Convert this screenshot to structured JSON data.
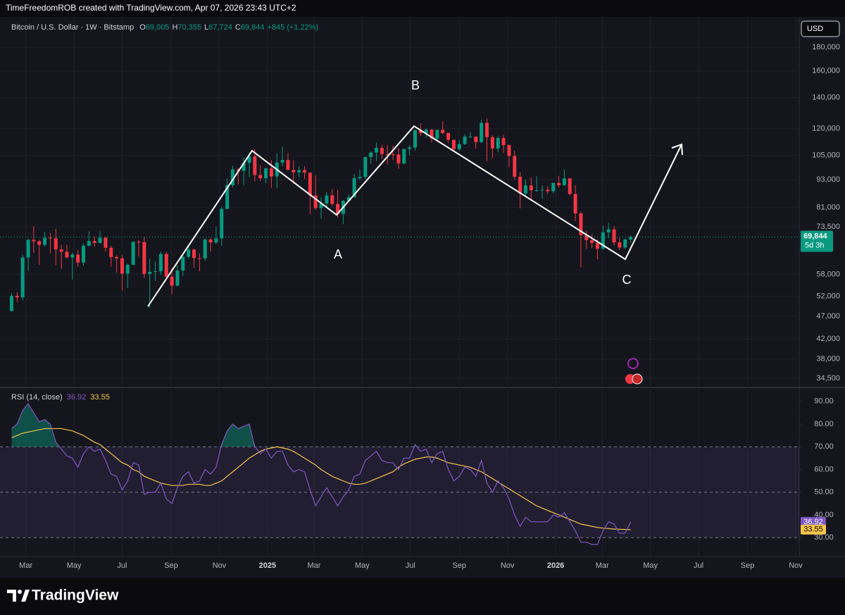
{
  "header": "TimeFreedomROB created with TradingView.com, Apr 07, 2026 23:43 UTC+2",
  "footer_logo": "TradingView",
  "currency_button": "USD",
  "chart_data": [
    {
      "type": "candlestick",
      "symbol": "Bitcoin / U.S. Dollar · 1W · Bitstamp",
      "legend": [
        [
          "O",
          "69,005"
        ],
        [
          "H",
          "70,355"
        ],
        [
          "L",
          "67,724"
        ],
        [
          "C",
          "69,844"
        ]
      ],
      "change": "+845 (+1.22%)",
      "countdown": "5d 3h",
      "annotations": [
        "A",
        "B",
        "C"
      ],
      "up_color": "#089981",
      "down_color": "#f23645",
      "log_scale": true,
      "grid": true,
      "xlim": [
        -2.1,
        142.5
      ],
      "xticks": [
        {
          "value": 2.57,
          "label": "Mar"
        },
        {
          "value": 11.29,
          "label": "May"
        },
        {
          "value": 20,
          "label": "Jul"
        },
        {
          "value": 28.86,
          "label": "Sep"
        },
        {
          "value": 37.57,
          "label": "Nov"
        },
        {
          "value": 46.29,
          "label": "2025"
        },
        {
          "value": 54.71,
          "label": "Mar"
        },
        {
          "value": 63.43,
          "label": "May"
        },
        {
          "value": 72.14,
          "label": "Jul"
        },
        {
          "value": 81,
          "label": "Sep"
        },
        {
          "value": 89.71,
          "label": "Nov"
        },
        {
          "value": 98.43,
          "label": "2026"
        },
        {
          "value": 106.86,
          "label": "Mar"
        },
        {
          "value": 115.57,
          "label": "May"
        },
        {
          "value": 124.29,
          "label": "Jul"
        },
        {
          "value": 133.14,
          "label": "Sep"
        },
        {
          "value": 141.86,
          "label": "Nov"
        }
      ],
      "ylim": [
        33200,
        206700
      ],
      "yticks": [
        {
          "value": 180000,
          "label": "180,000"
        },
        {
          "value": 160000,
          "label": "160,000"
        },
        {
          "value": 140000,
          "label": "140,000"
        },
        {
          "value": 120000,
          "label": "120,000"
        },
        {
          "value": 105000,
          "label": "105,000"
        },
        {
          "value": 93000,
          "label": "93,000"
        },
        {
          "value": 81000,
          "label": "81,000"
        },
        {
          "value": 73500,
          "label": "73,500"
        },
        {
          "value": 58000,
          "label": "58,000"
        },
        {
          "value": 52000,
          "label": "52,000"
        },
        {
          "value": 47000,
          "label": "47,000"
        },
        {
          "value": 42000,
          "label": "42,000"
        },
        {
          "value": 38000,
          "label": "38,000"
        },
        {
          "value": 34500,
          "label": "34,500"
        }
      ],
      "open": [
        48300,
        52100,
        51700,
        63100,
        68900,
        68400,
        67200,
        69600,
        69400,
        65700,
        64900,
        63100,
        64000,
        61500,
        66900,
        68500,
        67800,
        69600,
        66200,
        63200,
        62800,
        58200,
        60800,
        68200,
        68100,
        58100,
        58700,
        58900,
        64200,
        57300,
        54800,
        59100,
        63300,
        65600,
        62900,
        62800,
        69000,
        68000,
        69400,
        80400,
        90500,
        97900,
        97200,
        101200,
        104500,
        95200,
        93700,
        98400,
        94500,
        101300,
        102600,
        97700,
        96500,
        97600,
        96300,
        86000,
        80700,
        82600,
        86000,
        82400,
        78400,
        83700,
        85200,
        93700,
        94300,
        104100,
        106500,
        109000,
        105700,
        105600,
        105500,
        100900,
        108400,
        109200,
        119100,
        117300,
        119400,
        114200,
        119300,
        117400,
        113500,
        108300,
        111100,
        115300,
        115300,
        112200,
        123500,
        115000,
        108700,
        114500,
        110500,
        104700,
        94400,
        86800,
        90400,
        88200,
        88200,
        88500,
        87800,
        91500,
        90500,
        93600,
        86600,
        78600,
        70500,
        68800,
        67800,
        65900,
        71500,
        72600,
        68000,
        66300,
        69005
      ],
      "high": [
        52800,
        53000,
        64000,
        69200,
        73800,
        68900,
        71700,
        71300,
        72800,
        67200,
        67200,
        64700,
        65500,
        67700,
        71900,
        70000,
        71900,
        70000,
        66900,
        63800,
        63900,
        61300,
        68400,
        68800,
        70000,
        62700,
        61800,
        65000,
        64900,
        59800,
        60700,
        64100,
        66500,
        66000,
        64400,
        69400,
        69500,
        73600,
        81500,
        93500,
        99600,
        98600,
        104000,
        106500,
        108300,
        99900,
        98900,
        102700,
        106300,
        109600,
        106400,
        102500,
        99400,
        99500,
        96500,
        95000,
        85300,
        87400,
        88700,
        88500,
        84000,
        86400,
        95700,
        97900,
        104300,
        107100,
        111900,
        110700,
        110500,
        110400,
        108900,
        108500,
        110500,
        119400,
        123200,
        120200,
        119800,
        119300,
        124500,
        117600,
        113500,
        113400,
        116800,
        117900,
        115400,
        125600,
        126200,
        116100,
        116000,
        116400,
        110900,
        107500,
        96600,
        93100,
        94100,
        94600,
        90400,
        90000,
        91700,
        94800,
        97900,
        93800,
        90500,
        79300,
        72000,
        70800,
        69000,
        74000,
        75000,
        73800,
        69500,
        69300,
        70355
      ],
      "low": [
        48200,
        50500,
        50900,
        59000,
        64500,
        60800,
        66500,
        64500,
        60700,
        59600,
        62800,
        56500,
        60200,
        60700,
        66700,
        66600,
        67600,
        65000,
        60300,
        58400,
        53500,
        54200,
        60700,
        63400,
        57000,
        49000,
        56100,
        57800,
        57200,
        52500,
        54600,
        57500,
        62700,
        59900,
        58900,
        62000,
        65000,
        67500,
        66800,
        80200,
        89400,
        90800,
        90500,
        94200,
        92200,
        92500,
        91300,
        89300,
        89300,
        99500,
        97700,
        91200,
        94100,
        93400,
        78200,
        80000,
        76600,
        81100,
        81600,
        77100,
        74500,
        83100,
        85100,
        92800,
        93400,
        100700,
        102000,
        103100,
        100400,
        102700,
        98200,
        100400,
        105100,
        107500,
        115700,
        114700,
        112000,
        112600,
        116800,
        111700,
        107300,
        107300,
        110600,
        114700,
        108600,
        111600,
        102000,
        103600,
        106700,
        106300,
        98900,
        93000,
        80600,
        85300,
        83800,
        87600,
        84500,
        86600,
        86900,
        89300,
        90100,
        86100,
        75700,
        60000,
        65800,
        66000,
        62500,
        65500,
        69500,
        67000,
        65500,
        65800,
        67724
      ],
      "close": [
        52100,
        51700,
        63100,
        68900,
        68400,
        67200,
        69600,
        69400,
        65700,
        64900,
        63100,
        64000,
        61500,
        66900,
        68500,
        67800,
        69600,
        66200,
        63200,
        62800,
        58200,
        60800,
        68200,
        68100,
        58100,
        58700,
        58900,
        64200,
        57300,
        54800,
        59100,
        63300,
        65600,
        62900,
        62800,
        69000,
        68000,
        69400,
        80400,
        90500,
        97900,
        97200,
        101200,
        104500,
        95200,
        93700,
        98400,
        94500,
        101300,
        102600,
        97700,
        96500,
        97600,
        96300,
        86000,
        80700,
        82600,
        86000,
        82400,
        78400,
        83700,
        85200,
        93700,
        94300,
        104100,
        106500,
        109000,
        105700,
        105600,
        105500,
        100900,
        108400,
        109200,
        119100,
        117300,
        119400,
        114200,
        119300,
        117400,
        113500,
        108300,
        111100,
        115300,
        115300,
        112200,
        123500,
        115000,
        108700,
        114500,
        110500,
        104700,
        94400,
        86800,
        90400,
        88200,
        88200,
        88500,
        87800,
        91500,
        90500,
        93600,
        86600,
        78600,
        70500,
        68800,
        67800,
        65900,
        71500,
        72600,
        68000,
        66300,
        69005,
        69844
      ]
    },
    {
      "type": "line",
      "title": "RSI (14, close)",
      "ylim": [
        21.7,
        95.2
      ],
      "yticks": [
        {
          "value": 90,
          "label": "90.00"
        },
        {
          "value": 80,
          "label": "80.00"
        },
        {
          "value": 70,
          "label": "70.00"
        },
        {
          "value": 60,
          "label": "60.00"
        },
        {
          "value": 50,
          "label": "50.00"
        },
        {
          "value": 40,
          "label": "40.00"
        },
        {
          "value": 30,
          "label": "30.00"
        }
      ],
      "levels": [
        70,
        50,
        30
      ],
      "band_color": "#7e57c2",
      "overbought_color": "#089981",
      "series": [
        {
          "color": "#7e57c2",
          "values": [
            78,
            80,
            86,
            89,
            85,
            81,
            82,
            80,
            72,
            69,
            66,
            65,
            61,
            67,
            70,
            68,
            69,
            64,
            58,
            57,
            51,
            55,
            63,
            62,
            49,
            50,
            50,
            54,
            47,
            45,
            52,
            57,
            59,
            54,
            55,
            60,
            58,
            61,
            71,
            77,
            80,
            78,
            79,
            80,
            70,
            67,
            69,
            65,
            68,
            68,
            62,
            59,
            60,
            59,
            51,
            44,
            48,
            52,
            48,
            44,
            48,
            51,
            57,
            58,
            64,
            66,
            68,
            64,
            63,
            63,
            60,
            65,
            65,
            71,
            68,
            69,
            63,
            67,
            68,
            60,
            55,
            57,
            61,
            60,
            57,
            64,
            54,
            50,
            55,
            52,
            47,
            40,
            35,
            39,
            37,
            37,
            37,
            37,
            40,
            39,
            41,
            37,
            33,
            28,
            28,
            27,
            27,
            33,
            37,
            36,
            32,
            32,
            36.92
          ]
        },
        {
          "color": "#f7c548",
          "values": [
            74,
            75,
            76,
            76.5,
            77,
            77.5,
            78,
            78,
            78,
            78,
            77.5,
            77,
            76,
            75,
            73.5,
            72,
            71,
            69,
            67,
            65,
            63,
            62,
            60,
            59,
            57,
            56,
            55,
            54,
            53.5,
            53,
            53,
            53,
            53.5,
            53.5,
            53.5,
            53,
            53,
            54,
            55,
            57,
            59,
            61,
            63,
            65,
            66.5,
            68,
            69,
            69.5,
            70,
            69.5,
            69,
            68,
            66.5,
            65,
            63.5,
            62,
            60,
            58.5,
            57,
            56,
            55,
            54,
            53.5,
            53.5,
            54,
            55,
            56,
            57,
            58,
            59,
            61,
            62.5,
            63.5,
            64.5,
            65,
            65.5,
            65.5,
            65,
            64,
            63,
            62.5,
            62,
            61.5,
            61,
            60,
            59,
            57.5,
            56,
            54.5,
            53,
            51.5,
            50,
            48.5,
            47,
            45.5,
            44,
            43,
            42,
            41,
            40,
            39,
            38,
            37,
            36,
            35.5,
            35,
            34.5,
            34.2,
            34,
            33.8,
            33.7,
            33.6,
            33.55
          ]
        }
      ]
    }
  ]
}
